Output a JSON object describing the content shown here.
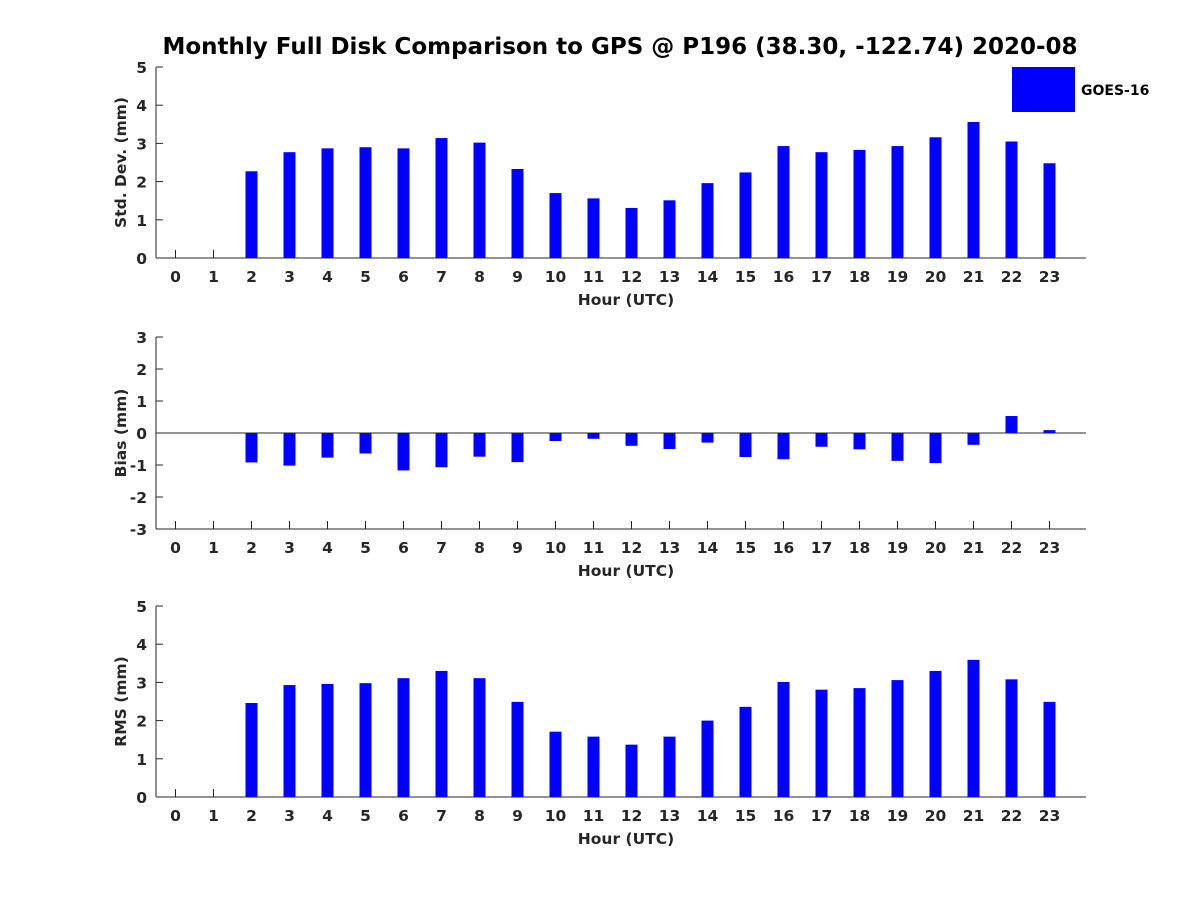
{
  "title": "Monthly Full Disk Comparison to GPS @ P196 (38.30, -122.74) 2020-08",
  "legend": {
    "label": "GOES-16",
    "color": "#0000ff"
  },
  "chart_data": [
    {
      "type": "bar",
      "ylabel": "Std. Dev. (mm)",
      "xlabel": "Hour (UTC)",
      "ylim": [
        0,
        5
      ],
      "yticks": [
        0,
        1,
        2,
        3,
        4,
        5
      ],
      "legend_position": "top-right",
      "categories": [
        "0",
        "1",
        "2",
        "3",
        "4",
        "5",
        "6",
        "7",
        "8",
        "9",
        "10",
        "11",
        "12",
        "13",
        "14",
        "15",
        "16",
        "17",
        "18",
        "19",
        "20",
        "21",
        "22",
        "23"
      ],
      "series": [
        {
          "name": "GOES-16",
          "color": "#0000ff",
          "values": [
            null,
            null,
            2.27,
            2.77,
            2.87,
            2.9,
            2.87,
            3.14,
            3.02,
            2.33,
            1.7,
            1.56,
            1.31,
            1.51,
            1.96,
            2.24,
            2.93,
            2.77,
            2.83,
            2.93,
            3.16,
            3.56,
            3.05,
            2.48
          ]
        }
      ]
    },
    {
      "type": "bar",
      "ylabel": "Bias (mm)",
      "xlabel": "Hour (UTC)",
      "ylim": [
        -3,
        3
      ],
      "yticks": [
        -3,
        -2,
        -1,
        0,
        1,
        2,
        3
      ],
      "categories": [
        "0",
        "1",
        "2",
        "3",
        "4",
        "5",
        "6",
        "7",
        "8",
        "9",
        "10",
        "11",
        "12",
        "13",
        "14",
        "15",
        "16",
        "17",
        "18",
        "19",
        "20",
        "21",
        "22",
        "23"
      ],
      "series": [
        {
          "name": "GOES-16",
          "color": "#0000ff",
          "values": [
            null,
            null,
            -0.92,
            -1.02,
            -0.77,
            -0.64,
            -1.17,
            -1.07,
            -0.74,
            -0.91,
            -0.25,
            -0.18,
            -0.4,
            -0.5,
            -0.3,
            -0.75,
            -0.82,
            -0.43,
            -0.51,
            -0.87,
            -0.94,
            -0.37,
            0.53,
            0.09
          ]
        }
      ]
    },
    {
      "type": "bar",
      "ylabel": "RMS (mm)",
      "xlabel": "Hour (UTC)",
      "ylim": [
        0,
        5
      ],
      "yticks": [
        0,
        1,
        2,
        3,
        4,
        5
      ],
      "categories": [
        "0",
        "1",
        "2",
        "3",
        "4",
        "5",
        "6",
        "7",
        "8",
        "9",
        "10",
        "11",
        "12",
        "13",
        "14",
        "15",
        "16",
        "17",
        "18",
        "19",
        "20",
        "21",
        "22",
        "23"
      ],
      "series": [
        {
          "name": "GOES-16",
          "color": "#0000ff",
          "values": [
            null,
            null,
            2.46,
            2.93,
            2.96,
            2.98,
            3.11,
            3.3,
            3.11,
            2.49,
            1.71,
            1.58,
            1.37,
            1.58,
            2.0,
            2.36,
            3.01,
            2.81,
            2.85,
            3.06,
            3.3,
            3.59,
            3.08,
            2.49
          ]
        }
      ]
    }
  ]
}
